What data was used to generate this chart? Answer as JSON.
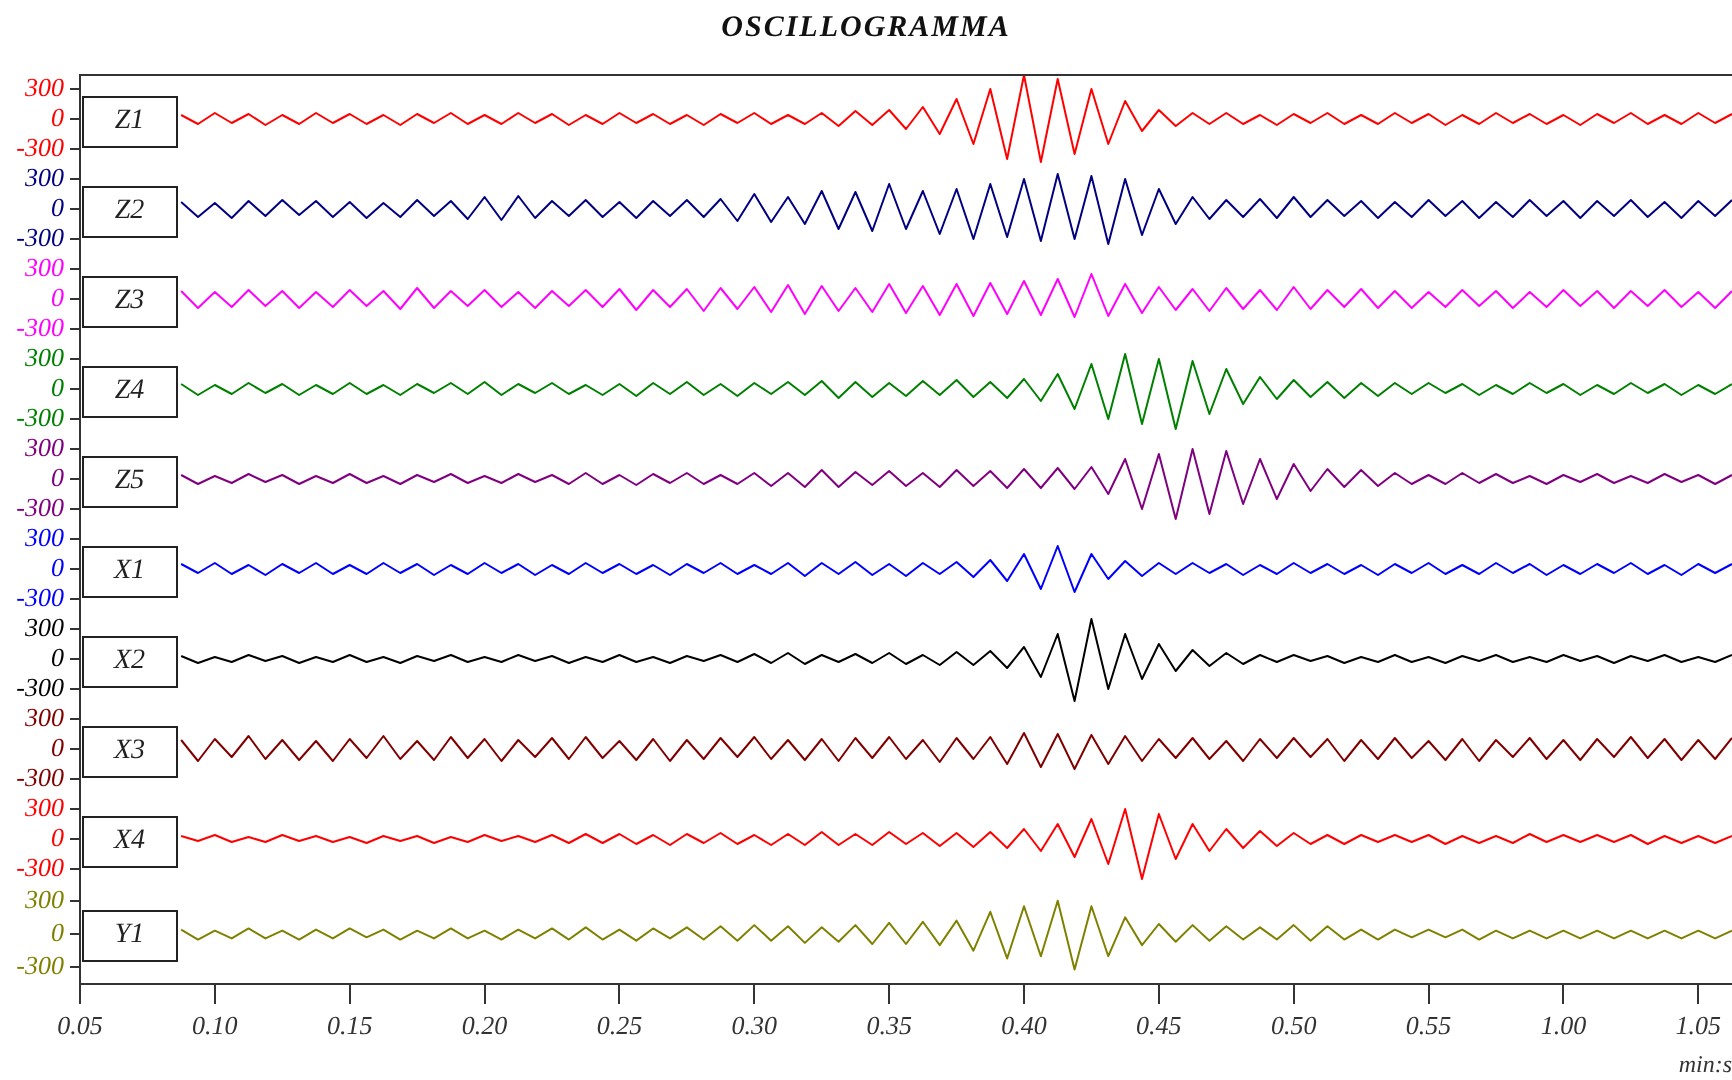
{
  "chart_data": [
    {
      "type": "line",
      "title": "OSCILLOGRAMMA",
      "tick_labels": "y",
      "ylim": [
        -450,
        450
      ],
      "yticks": [
        -300,
        0,
        300
      ],
      "categories": [
        null,
        null,
        null,
        null,
        null,
        null,
        null,
        null,
        null,
        null,
        null,
        null,
        null,
        null,
        null,
        null,
        null,
        null,
        null,
        null,
        null,
        null,
        null,
        null,
        null,
        null,
        null,
        null,
        null,
        null,
        null,
        null,
        null,
        null,
        null,
        null,
        null,
        null,
        null,
        null,
        null,
        null,
        null,
        null,
        null,
        null,
        null,
        null,
        null,
        null,
        null,
        null,
        null,
        null,
        null,
        null,
        null,
        null,
        null,
        null,
        null,
        null,
        null,
        null,
        null,
        null,
        null,
        null,
        null,
        null,
        null,
        null,
        null,
        null,
        null,
        null,
        null,
        null,
        null,
        null,
        null,
        null,
        null,
        null,
        null,
        null,
        null,
        null,
        null,
        null,
        null,
        null,
        null,
        null,
        null,
        null,
        null,
        null,
        null
      ],
      "series": [
        {
          "name": "Z1",
          "color": "#ff0000",
          "values": [
            null,
            null,
            null,
            null,
            null,
            null,
            40,
            -50,
            60,
            -40,
            50,
            -60,
            40,
            -50,
            60,
            -40,
            50,
            -50,
            40,
            -60,
            50,
            -40,
            60,
            -50,
            40,
            -50,
            60,
            -40,
            50,
            -60,
            40,
            -50,
            60,
            -40,
            50,
            -50,
            40,
            -60,
            50,
            -40,
            60,
            -50,
            40,
            -50,
            60,
            -70,
            80,
            -60,
            90,
            -100,
            120,
            -150,
            200,
            -250,
            300,
            -400,
            440,
            -430,
            400,
            -350,
            300,
            -250,
            180,
            -120,
            90,
            -70,
            60,
            -50,
            60,
            -50,
            40,
            -60,
            50,
            -40,
            60,
            -50,
            40,
            -50,
            60,
            -40,
            50,
            -60,
            40,
            -50,
            60,
            -40,
            50,
            -50,
            40,
            -60,
            50,
            -40,
            60,
            -50,
            40,
            -50,
            60,
            -40,
            50
          ]
        }
      ]
    },
    {
      "type": "line",
      "tick_labels": "y",
      "ylim": [
        -450,
        450
      ],
      "yticks": [
        -300,
        0,
        300
      ],
      "categories": [
        null,
        null,
        null,
        null,
        null,
        null,
        null,
        null,
        null,
        null,
        null,
        null,
        null,
        null,
        null,
        null,
        null,
        null,
        null,
        null,
        null,
        null,
        null,
        null,
        null,
        null,
        null,
        null,
        null,
        null,
        null,
        null,
        null,
        null,
        null,
        null,
        null,
        null,
        null,
        null,
        null,
        null,
        null,
        null,
        null,
        null,
        null,
        null,
        null,
        null,
        null,
        null,
        null,
        null,
        null,
        null,
        null,
        null,
        null,
        null,
        null,
        null,
        null,
        null,
        null,
        null,
        null,
        null,
        null,
        null,
        null,
        null,
        null,
        null,
        null,
        null,
        null,
        null,
        null,
        null,
        null,
        null,
        null,
        null,
        null,
        null,
        null,
        null,
        null,
        null,
        null,
        null,
        null,
        null,
        null,
        null,
        null,
        null,
        null
      ],
      "series": [
        {
          "name": "Z2",
          "color": "#000080",
          "values": [
            null,
            null,
            null,
            null,
            null,
            null,
            70,
            -80,
            60,
            -90,
            80,
            -70,
            90,
            -60,
            80,
            -80,
            70,
            -90,
            60,
            -80,
            90,
            -70,
            80,
            -100,
            120,
            -110,
            130,
            -90,
            80,
            -70,
            90,
            -80,
            70,
            -90,
            80,
            -70,
            90,
            -80,
            100,
            -120,
            150,
            -130,
            120,
            -150,
            180,
            -200,
            170,
            -220,
            250,
            -200,
            180,
            -250,
            200,
            -300,
            250,
            -280,
            300,
            -320,
            350,
            -300,
            330,
            -350,
            300,
            -260,
            200,
            -150,
            120,
            -100,
            90,
            -80,
            100,
            -90,
            120,
            -80,
            90,
            -70,
            80,
            -90,
            70,
            -80,
            90,
            -70,
            80,
            -90,
            70,
            -80,
            90,
            -70,
            80,
            -90,
            80,
            -70,
            90,
            -80,
            70,
            -90,
            80,
            -70,
            90
          ]
        }
      ]
    },
    {
      "type": "line",
      "tick_labels": "y",
      "ylim": [
        -450,
        450
      ],
      "yticks": [
        -300,
        0,
        300
      ],
      "categories": [
        null,
        null,
        null,
        null,
        null,
        null,
        null,
        null,
        null,
        null,
        null,
        null,
        null,
        null,
        null,
        null,
        null,
        null,
        null,
        null,
        null,
        null,
        null,
        null,
        null,
        null,
        null,
        null,
        null,
        null,
        null,
        null,
        null,
        null,
        null,
        null,
        null,
        null,
        null,
        null,
        null,
        null,
        null,
        null,
        null,
        null,
        null,
        null,
        null,
        null,
        null,
        null,
        null,
        null,
        null,
        null,
        null,
        null,
        null,
        null,
        null,
        null,
        null,
        null,
        null,
        null,
        null,
        null,
        null,
        null,
        null,
        null,
        null,
        null,
        null,
        null,
        null,
        null,
        null,
        null,
        null,
        null,
        null,
        null,
        null,
        null,
        null,
        null,
        null,
        null,
        null,
        null,
        null,
        null,
        null,
        null,
        null,
        null,
        null
      ],
      "series": [
        {
          "name": "Z3",
          "color": "#ff00ff",
          "values": [
            null,
            null,
            null,
            null,
            null,
            null,
            80,
            -90,
            70,
            -80,
            90,
            -70,
            80,
            -90,
            70,
            -80,
            90,
            -70,
            80,
            -100,
            110,
            -90,
            80,
            -70,
            90,
            -80,
            70,
            -90,
            80,
            -70,
            90,
            -80,
            100,
            -110,
            90,
            -80,
            100,
            -120,
            110,
            -100,
            120,
            -130,
            140,
            -150,
            130,
            -120,
            110,
            -130,
            150,
            -140,
            130,
            -160,
            150,
            -170,
            160,
            -150,
            180,
            -160,
            200,
            -180,
            250,
            -170,
            150,
            -140,
            120,
            -110,
            100,
            -120,
            110,
            -100,
            90,
            -110,
            120,
            -100,
            90,
            -80,
            100,
            -90,
            80,
            -90,
            70,
            -80,
            90,
            -70,
            80,
            -90,
            70,
            -80,
            90,
            -70,
            80,
            -90,
            80,
            -70,
            90,
            -80,
            70,
            -90,
            80
          ]
        }
      ]
    },
    {
      "type": "line",
      "tick_labels": "y",
      "ylim": [
        -450,
        450
      ],
      "yticks": [
        -300,
        0,
        300
      ],
      "categories": [
        null,
        null,
        null,
        null,
        null,
        null,
        null,
        null,
        null,
        null,
        null,
        null,
        null,
        null,
        null,
        null,
        null,
        null,
        null,
        null,
        null,
        null,
        null,
        null,
        null,
        null,
        null,
        null,
        null,
        null,
        null,
        null,
        null,
        null,
        null,
        null,
        null,
        null,
        null,
        null,
        null,
        null,
        null,
        null,
        null,
        null,
        null,
        null,
        null,
        null,
        null,
        null,
        null,
        null,
        null,
        null,
        null,
        null,
        null,
        null,
        null,
        null,
        null,
        null,
        null,
        null,
        null,
        null,
        null,
        null,
        null,
        null,
        null,
        null,
        null,
        null,
        null,
        null,
        null,
        null,
        null,
        null,
        null,
        null,
        null,
        null,
        null,
        null,
        null,
        null,
        null,
        null,
        null,
        null,
        null,
        null,
        null,
        null,
        null
      ],
      "series": [
        {
          "name": "Z4",
          "color": "#008000",
          "values": [
            null,
            null,
            null,
            null,
            null,
            null,
            50,
            -60,
            40,
            -50,
            60,
            -40,
            50,
            -60,
            40,
            -50,
            60,
            -50,
            40,
            -60,
            50,
            -40,
            60,
            -50,
            70,
            -60,
            50,
            -40,
            60,
            -50,
            40,
            -60,
            50,
            -70,
            60,
            -50,
            70,
            -60,
            50,
            -70,
            60,
            -50,
            70,
            -60,
            80,
            -90,
            70,
            -80,
            60,
            -70,
            80,
            -60,
            90,
            -80,
            70,
            -90,
            100,
            -120,
            150,
            -200,
            250,
            -300,
            350,
            -350,
            300,
            -400,
            280,
            -250,
            200,
            -150,
            120,
            -100,
            90,
            -80,
            70,
            -90,
            60,
            -70,
            60,
            -50,
            60,
            -40,
            50,
            -60,
            40,
            -50,
            60,
            -40,
            50,
            -60,
            40,
            -50,
            60,
            -40,
            50,
            -60,
            40,
            -50,
            50
          ]
        }
      ]
    },
    {
      "type": "line",
      "tick_labels": "y",
      "ylim": [
        -450,
        450
      ],
      "yticks": [
        -300,
        0,
        300
      ],
      "categories": [
        null,
        null,
        null,
        null,
        null,
        null,
        null,
        null,
        null,
        null,
        null,
        null,
        null,
        null,
        null,
        null,
        null,
        null,
        null,
        null,
        null,
        null,
        null,
        null,
        null,
        null,
        null,
        null,
        null,
        null,
        null,
        null,
        null,
        null,
        null,
        null,
        null,
        null,
        null,
        null,
        null,
        null,
        null,
        null,
        null,
        null,
        null,
        null,
        null,
        null,
        null,
        null,
        null,
        null,
        null,
        null,
        null,
        null,
        null,
        null,
        null,
        null,
        null,
        null,
        null,
        null,
        null,
        null,
        null,
        null,
        null,
        null,
        null,
        null,
        null,
        null,
        null,
        null,
        null,
        null,
        null,
        null,
        null,
        null,
        null,
        null,
        null,
        null,
        null,
        null,
        null,
        null,
        null,
        null,
        null,
        null,
        null,
        null,
        null
      ],
      "series": [
        {
          "name": "Z5",
          "color": "#800080",
          "values": [
            null,
            null,
            null,
            null,
            null,
            null,
            40,
            -50,
            30,
            -40,
            50,
            -30,
            40,
            -50,
            30,
            -40,
            50,
            -40,
            30,
            -50,
            40,
            -30,
            50,
            -40,
            30,
            -40,
            50,
            -30,
            40,
            -50,
            60,
            -50,
            40,
            -60,
            50,
            -40,
            60,
            -50,
            40,
            -50,
            60,
            -70,
            60,
            -80,
            90,
            -80,
            70,
            -60,
            80,
            -70,
            60,
            -80,
            90,
            -70,
            80,
            -90,
            100,
            -90,
            110,
            -100,
            120,
            -150,
            200,
            -300,
            250,
            -400,
            300,
            -350,
            280,
            -250,
            200,
            -200,
            150,
            -120,
            100,
            -80,
            90,
            -70,
            60,
            -50,
            40,
            -50,
            60,
            -40,
            50,
            -40,
            30,
            -50,
            40,
            -30,
            50,
            -40,
            30,
            -40,
            50,
            -30,
            40,
            -50,
            40
          ]
        }
      ]
    },
    {
      "type": "line",
      "tick_labels": "y",
      "ylim": [
        -450,
        450
      ],
      "yticks": [
        -300,
        0,
        300
      ],
      "categories": [
        null,
        null,
        null,
        null,
        null,
        null,
        null,
        null,
        null,
        null,
        null,
        null,
        null,
        null,
        null,
        null,
        null,
        null,
        null,
        null,
        null,
        null,
        null,
        null,
        null,
        null,
        null,
        null,
        null,
        null,
        null,
        null,
        null,
        null,
        null,
        null,
        null,
        null,
        null,
        null,
        null,
        null,
        null,
        null,
        null,
        null,
        null,
        null,
        null,
        null,
        null,
        null,
        null,
        null,
        null,
        null,
        null,
        null,
        null,
        null,
        null,
        null,
        null,
        null,
        null,
        null,
        null,
        null,
        null,
        null,
        null,
        null,
        null,
        null,
        null,
        null,
        null,
        null,
        null,
        null,
        null,
        null,
        null,
        null,
        null,
        null,
        null,
        null,
        null,
        null,
        null,
        null,
        null,
        null,
        null,
        null,
        null,
        null,
        null
      ],
      "series": [
        {
          "name": "X1",
          "color": "#0000ff",
          "values": [
            null,
            null,
            null,
            null,
            null,
            null,
            50,
            -40,
            60,
            -50,
            40,
            -60,
            50,
            -40,
            60,
            -50,
            40,
            -50,
            60,
            -40,
            50,
            -60,
            40,
            -50,
            60,
            -40,
            50,
            -60,
            40,
            -50,
            60,
            -40,
            50,
            -50,
            40,
            -60,
            50,
            -40,
            60,
            -50,
            40,
            -50,
            60,
            -70,
            60,
            -50,
            70,
            -60,
            50,
            -70,
            60,
            -50,
            70,
            -80,
            90,
            -120,
            150,
            -200,
            230,
            -230,
            150,
            -100,
            80,
            -70,
            60,
            -50,
            60,
            -40,
            50,
            -60,
            40,
            -50,
            60,
            -40,
            50,
            -50,
            40,
            -60,
            50,
            -40,
            60,
            -50,
            40,
            -50,
            60,
            -40,
            50,
            -60,
            40,
            -50,
            50,
            -40,
            60,
            -50,
            40,
            -60,
            50,
            -40,
            50
          ]
        }
      ]
    },
    {
      "type": "line",
      "tick_labels": "y",
      "ylim": [
        -450,
        450
      ],
      "yticks": [
        -300,
        0,
        300
      ],
      "categories": [
        null,
        null,
        null,
        null,
        null,
        null,
        null,
        null,
        null,
        null,
        null,
        null,
        null,
        null,
        null,
        null,
        null,
        null,
        null,
        null,
        null,
        null,
        null,
        null,
        null,
        null,
        null,
        null,
        null,
        null,
        null,
        null,
        null,
        null,
        null,
        null,
        null,
        null,
        null,
        null,
        null,
        null,
        null,
        null,
        null,
        null,
        null,
        null,
        null,
        null,
        null,
        null,
        null,
        null,
        null,
        null,
        null,
        null,
        null,
        null,
        null,
        null,
        null,
        null,
        null,
        null,
        null,
        null,
        null,
        null,
        null,
        null,
        null,
        null,
        null,
        null,
        null,
        null,
        null,
        null,
        null,
        null,
        null,
        null,
        null,
        null,
        null,
        null,
        null,
        null,
        null,
        null,
        null,
        null,
        null,
        null,
        null,
        null,
        null
      ],
      "series": [
        {
          "name": "X2",
          "color": "#000000",
          "values": [
            null,
            null,
            null,
            null,
            null,
            null,
            30,
            -40,
            20,
            -30,
            40,
            -20,
            30,
            -40,
            20,
            -30,
            40,
            -30,
            20,
            -40,
            30,
            -20,
            40,
            -30,
            20,
            -30,
            40,
            -20,
            30,
            -40,
            20,
            -30,
            40,
            -30,
            20,
            -40,
            30,
            -20,
            40,
            -30,
            50,
            -40,
            60,
            -50,
            40,
            -30,
            50,
            -40,
            60,
            -50,
            40,
            -60,
            70,
            -60,
            80,
            -90,
            120,
            -180,
            250,
            -420,
            400,
            -300,
            250,
            -200,
            150,
            -120,
            90,
            -70,
            60,
            -50,
            40,
            -30,
            40,
            -20,
            30,
            -40,
            20,
            -30,
            40,
            -30,
            20,
            -40,
            30,
            -20,
            40,
            -30,
            20,
            -30,
            40,
            -20,
            30,
            -40,
            30,
            -20,
            40,
            -30,
            20,
            -30,
            40
          ]
        }
      ]
    },
    {
      "type": "line",
      "tick_labels": "y",
      "ylim": [
        -450,
        450
      ],
      "yticks": [
        -300,
        0,
        300
      ],
      "categories": [
        null,
        null,
        null,
        null,
        null,
        null,
        null,
        null,
        null,
        null,
        null,
        null,
        null,
        null,
        null,
        null,
        null,
        null,
        null,
        null,
        null,
        null,
        null,
        null,
        null,
        null,
        null,
        null,
        null,
        null,
        null,
        null,
        null,
        null,
        null,
        null,
        null,
        null,
        null,
        null,
        null,
        null,
        null,
        null,
        null,
        null,
        null,
        null,
        null,
        null,
        null,
        null,
        null,
        null,
        null,
        null,
        null,
        null,
        null,
        null,
        null,
        null,
        null,
        null,
        null,
        null,
        null,
        null,
        null,
        null,
        null,
        null,
        null,
        null,
        null,
        null,
        null,
        null,
        null,
        null,
        null,
        null,
        null,
        null,
        null,
        null,
        null,
        null,
        null,
        null,
        null,
        null,
        null,
        null,
        null,
        null,
        null,
        null,
        null
      ],
      "series": [
        {
          "name": "X3",
          "color": "#800000",
          "values": [
            null,
            null,
            null,
            null,
            null,
            null,
            90,
            -120,
            100,
            -80,
            130,
            -100,
            90,
            -110,
            80,
            -120,
            100,
            -90,
            130,
            -100,
            80,
            -110,
            120,
            -90,
            100,
            -120,
            90,
            -80,
            110,
            -100,
            120,
            -90,
            80,
            -110,
            100,
            -120,
            90,
            -100,
            110,
            -80,
            120,
            -100,
            90,
            -110,
            100,
            -120,
            110,
            -90,
            120,
            -100,
            90,
            -130,
            110,
            -100,
            120,
            -150,
            160,
            -180,
            150,
            -200,
            140,
            -150,
            130,
            -120,
            100,
            -90,
            110,
            -100,
            80,
            -120,
            100,
            -90,
            110,
            -80,
            100,
            -120,
            90,
            -100,
            110,
            -90,
            80,
            -110,
            100,
            -120,
            90,
            -80,
            110,
            -100,
            90,
            -110,
            100,
            -80,
            120,
            -90,
            100,
            -110,
            90,
            -100,
            110
          ]
        }
      ]
    },
    {
      "type": "line",
      "tick_labels": "y",
      "ylim": [
        -450,
        450
      ],
      "yticks": [
        -300,
        0,
        300
      ],
      "categories": [
        null,
        null,
        null,
        null,
        null,
        null,
        null,
        null,
        null,
        null,
        null,
        null,
        null,
        null,
        null,
        null,
        null,
        null,
        null,
        null,
        null,
        null,
        null,
        null,
        null,
        null,
        null,
        null,
        null,
        null,
        null,
        null,
        null,
        null,
        null,
        null,
        null,
        null,
        null,
        null,
        null,
        null,
        null,
        null,
        null,
        null,
        null,
        null,
        null,
        null,
        null,
        null,
        null,
        null,
        null,
        null,
        null,
        null,
        null,
        null,
        null,
        null,
        null,
        null,
        null,
        null,
        null,
        null,
        null,
        null,
        null,
        null,
        null,
        null,
        null,
        null,
        null,
        null,
        null,
        null,
        null,
        null,
        null,
        null,
        null,
        null,
        null,
        null,
        null,
        null,
        null,
        null,
        null,
        null,
        null,
        null,
        null,
        null,
        null
      ],
      "series": [
        {
          "name": "X4",
          "color": "#ff0000",
          "values": [
            null,
            null,
            null,
            null,
            null,
            null,
            30,
            -20,
            40,
            -30,
            20,
            -30,
            40,
            -20,
            30,
            -30,
            20,
            -40,
            30,
            -20,
            30,
            -40,
            20,
            -30,
            40,
            -20,
            30,
            -30,
            40,
            -40,
            50,
            -40,
            50,
            -50,
            40,
            -60,
            50,
            -40,
            60,
            -50,
            40,
            -60,
            50,
            -60,
            70,
            -60,
            50,
            -60,
            70,
            -50,
            60,
            -70,
            60,
            -80,
            70,
            -90,
            100,
            -120,
            150,
            -180,
            200,
            -250,
            300,
            -400,
            250,
            -200,
            150,
            -120,
            100,
            -90,
            80,
            -70,
            60,
            -50,
            40,
            -50,
            40,
            -30,
            40,
            -30,
            40,
            -50,
            30,
            -40,
            30,
            -40,
            50,
            -30,
            40,
            -30,
            40,
            -30,
            40,
            -50,
            30,
            -40,
            30,
            -40,
            30
          ]
        }
      ]
    },
    {
      "type": "line",
      "xlabel": "min:s",
      "ylim": [
        -450,
        450
      ],
      "yticks": [
        -300,
        0,
        300
      ],
      "categories": [
        "0.05",
        null,
        null,
        null,
        null,
        null,
        null,
        null,
        "0.10",
        null,
        null,
        null,
        null,
        null,
        null,
        null,
        "0.15",
        null,
        null,
        null,
        null,
        null,
        null,
        null,
        "0.20",
        null,
        null,
        null,
        null,
        null,
        null,
        null,
        "0.25",
        null,
        null,
        null,
        null,
        null,
        null,
        null,
        "0.30",
        null,
        null,
        null,
        null,
        null,
        null,
        null,
        "0.35",
        null,
        null,
        null,
        null,
        null,
        null,
        null,
        "0.40",
        null,
        null,
        null,
        null,
        null,
        null,
        null,
        "0.45",
        null,
        null,
        null,
        null,
        null,
        null,
        null,
        "0.50",
        null,
        null,
        null,
        null,
        null,
        null,
        null,
        "0.55",
        null,
        null,
        null,
        null,
        null,
        null,
        null,
        "1.00",
        null,
        null,
        null,
        null,
        null,
        null,
        null,
        "1.05",
        null,
        null
      ],
      "series": [
        {
          "name": "Y1",
          "color": "#808000",
          "values": [
            null,
            null,
            null,
            null,
            null,
            null,
            40,
            -50,
            30,
            -40,
            50,
            -40,
            30,
            -50,
            40,
            -40,
            50,
            -30,
            40,
            -50,
            30,
            -40,
            50,
            -40,
            30,
            -50,
            40,
            -40,
            50,
            -50,
            60,
            -50,
            40,
            -60,
            50,
            -40,
            60,
            -50,
            70,
            -60,
            80,
            -60,
            70,
            -80,
            60,
            -70,
            80,
            -90,
            100,
            -90,
            110,
            -100,
            120,
            -150,
            200,
            -220,
            250,
            -200,
            300,
            -320,
            250,
            -200,
            150,
            -100,
            90,
            -70,
            80,
            -60,
            70,
            -50,
            60,
            -50,
            80,
            -60,
            70,
            -50,
            40,
            -50,
            40,
            -30,
            40,
            -30,
            40,
            -50,
            30,
            -40,
            30,
            -40,
            30,
            -40,
            30,
            -40,
            30,
            -40,
            30,
            -40,
            30,
            -40,
            30
          ]
        }
      ]
    }
  ]
}
